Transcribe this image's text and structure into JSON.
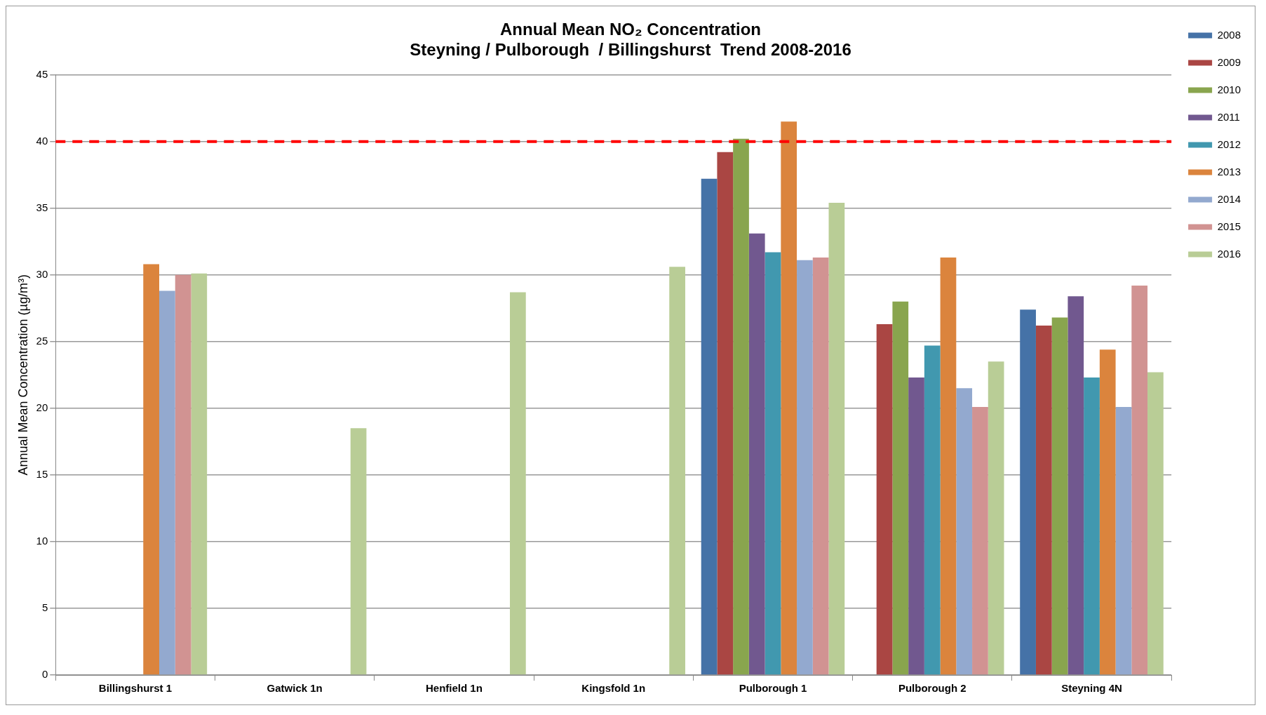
{
  "chart_data": {
    "type": "bar",
    "title": "Annual Mean NO₂ Concentration",
    "subtitle": "Steyning / Pulborough  / Billingshurst  Trend 2008-2016",
    "ylabel": "Annual Mean Concentration (µg/m³)",
    "categories": [
      "Billingshurst 1",
      "Gatwick 1n",
      "Henfield 1n",
      "Kingsfold 1n",
      "Pulborough 1",
      "Pulborough 2",
      "Steyning 4N"
    ],
    "series": [
      {
        "name": "2008",
        "color": "#4572a7",
        "values": [
          null,
          null,
          null,
          null,
          37.2,
          null,
          27.4
        ]
      },
      {
        "name": "2009",
        "color": "#aa4643",
        "values": [
          null,
          null,
          null,
          null,
          39.2,
          26.3,
          26.2
        ]
      },
      {
        "name": "2010",
        "color": "#89a54e",
        "values": [
          null,
          null,
          null,
          null,
          40.2,
          28.0,
          26.8
        ]
      },
      {
        "name": "2011",
        "color": "#71588f",
        "values": [
          null,
          null,
          null,
          null,
          33.1,
          22.3,
          28.4
        ]
      },
      {
        "name": "2012",
        "color": "#4198af",
        "values": [
          null,
          null,
          null,
          null,
          31.7,
          24.7,
          22.3
        ]
      },
      {
        "name": "2013",
        "color": "#db843d",
        "values": [
          30.8,
          null,
          null,
          null,
          41.5,
          31.3,
          24.4
        ]
      },
      {
        "name": "2014",
        "color": "#93a9cf",
        "values": [
          28.8,
          null,
          null,
          null,
          31.1,
          21.5,
          20.1
        ]
      },
      {
        "name": "2015",
        "color": "#d19392",
        "values": [
          30.0,
          null,
          null,
          null,
          31.3,
          20.1,
          29.2
        ]
      },
      {
        "name": "2016",
        "color": "#b9cd96",
        "values": [
          30.1,
          18.5,
          28.7,
          30.6,
          35.4,
          23.5,
          22.7
        ]
      }
    ],
    "ylim": [
      0,
      45
    ],
    "yticks": [
      0,
      5,
      10,
      15,
      20,
      25,
      30,
      35,
      40,
      45
    ],
    "grid": "y",
    "legend": "top right",
    "ref_lines": [
      {
        "axis": "y",
        "value": 40,
        "color": "#ff0000",
        "line_style": "dashed"
      }
    ]
  }
}
